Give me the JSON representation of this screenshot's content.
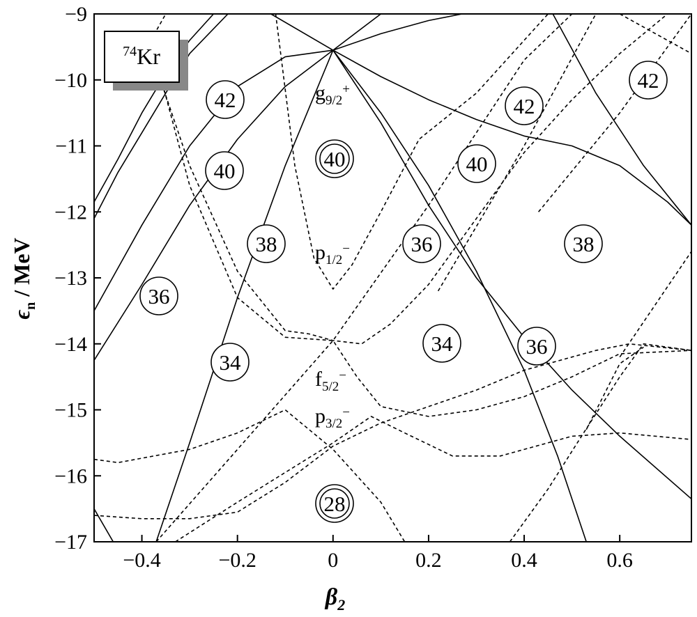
{
  "chart_data": {
    "type": "line",
    "x_label": {
      "symbol": "β",
      "subscript": "2"
    },
    "y_label": {
      "symbol": "ϵ",
      "subscript": "n",
      "unit": " / MeV"
    },
    "xlim": [
      -0.5,
      0.75
    ],
    "ylim": [
      -17,
      -9
    ],
    "xticks": [
      {
        "value": -0.4,
        "label": "−0.4"
      },
      {
        "value": -0.2,
        "label": "−0.2"
      },
      0,
      0.2,
      0.4,
      0.6
    ],
    "yticks": [
      {
        "value": -17,
        "label": "−17"
      },
      {
        "value": -16,
        "label": "−16"
      },
      {
        "value": -15,
        "label": "−15"
      },
      {
        "value": -14,
        "label": "−14"
      },
      {
        "value": -13,
        "label": "−13"
      },
      {
        "value": -12,
        "label": "−12"
      },
      {
        "value": -11,
        "label": "−11"
      },
      {
        "value": -10,
        "label": "−10"
      },
      {
        "value": -9,
        "label": "−9"
      }
    ],
    "color": "#000000",
    "inset": {
      "mass": "74",
      "element": "Kr"
    },
    "orbital_labels": [
      {
        "letter": "g",
        "sub": "9/2",
        "sup": "+"
      },
      {
        "letter": "p",
        "sub": "1/2",
        "sup": "−"
      },
      {
        "letter": "f",
        "sub": "5/2",
        "sup": "−"
      },
      {
        "letter": "p",
        "sub": "3/2",
        "sup": "−"
      }
    ],
    "magic_numbers": [
      {
        "label": "42",
        "double": false
      },
      {
        "label": "40",
        "double": false
      },
      {
        "label": "38",
        "double": false
      },
      {
        "label": "36",
        "double": false
      },
      {
        "label": "34",
        "double": false
      },
      {
        "label": "40",
        "double": true
      },
      {
        "label": "36",
        "double": false
      },
      {
        "label": "34",
        "double": false
      },
      {
        "label": "40",
        "double": false
      },
      {
        "label": "42",
        "double": false
      },
      {
        "label": "36",
        "double": false
      },
      {
        "label": "38",
        "double": false
      },
      {
        "label": "42",
        "double": false
      },
      {
        "label": "28",
        "double": true
      }
    ],
    "series": [
      {
        "style": "solid",
        "x": [
          -0.5,
          -0.4,
          -0.3,
          -0.2,
          -0.1,
          0
        ],
        "values": [
          -13.5,
          -12.2,
          -11.0,
          -10.1,
          -9.65,
          -9.55
        ]
      },
      {
        "style": "solid",
        "x": [
          -0.5,
          -0.4,
          -0.3,
          -0.2,
          -0.1,
          0
        ],
        "values": [
          -14.25,
          -13.1,
          -11.9,
          -10.9,
          -10.1,
          -9.55
        ]
      },
      {
        "style": "solid",
        "x": [
          -0.5,
          -0.45,
          -0.4,
          -0.35,
          -0.3,
          -0.25
        ],
        "values": [
          -11.85,
          -11.2,
          -10.5,
          -9.9,
          -9.4,
          -9.0
        ]
      },
      {
        "style": "solid",
        "x": [
          -0.5,
          -0.45,
          -0.4,
          -0.35,
          -0.3,
          -0.22
        ],
        "values": [
          -12.1,
          -11.4,
          -10.8,
          -10.2,
          -9.6,
          -9.0
        ]
      },
      {
        "style": "solid",
        "x": [
          -0.37,
          -0.3,
          -0.2,
          -0.1,
          0
        ],
        "values": [
          -17,
          -15.5,
          -13.3,
          -11.3,
          -9.55
        ]
      },
      {
        "style": "solid",
        "x": [
          -0.5,
          -0.46
        ],
        "values": [
          -16.5,
          -17
        ]
      },
      {
        "style": "solid",
        "x": [
          -0.13,
          0,
          0.1
        ],
        "values": [
          -9.0,
          -9.55,
          -9.0
        ]
      },
      {
        "style": "solid",
        "x": [
          0,
          0.1,
          0.2,
          0.3,
          0.4,
          0.47,
          0.53
        ],
        "values": [
          -9.55,
          -10.5,
          -11.6,
          -12.9,
          -14.4,
          -15.7,
          -17
        ]
      },
      {
        "style": "solid",
        "x": [
          0,
          0.1,
          0.2,
          0.3,
          0.4,
          0.5,
          0.6,
          0.75
        ],
        "values": [
          -9.55,
          -10.65,
          -11.9,
          -13.0,
          -13.9,
          -14.7,
          -15.4,
          -16.35
        ]
      },
      {
        "style": "solid",
        "x": [
          0,
          0.1,
          0.2,
          0.3,
          0.4,
          0.5,
          0.6,
          0.7,
          0.75
        ],
        "values": [
          -9.55,
          -9.95,
          -10.3,
          -10.6,
          -10.85,
          -11.0,
          -11.3,
          -11.85,
          -12.2
        ]
      },
      {
        "style": "solid",
        "x": [
          0,
          0.1,
          0.2,
          0.27
        ],
        "values": [
          -9.55,
          -9.3,
          -9.1,
          -9.0
        ]
      },
      {
        "style": "solid",
        "x": [
          0.46,
          0.55,
          0.65,
          0.75
        ],
        "values": [
          -9.0,
          -10.2,
          -11.3,
          -12.2
        ]
      },
      {
        "style": "dashed",
        "x": [
          -0.12,
          -0.08,
          -0.04,
          0,
          0.04,
          0.1,
          0.18,
          0.3,
          0.45
        ],
        "values": [
          -9.0,
          -11.3,
          -12.7,
          -13.17,
          -12.8,
          -12.0,
          -10.9,
          -10.2,
          -9.0
        ]
      },
      {
        "style": "dashed",
        "x": [
          -0.38,
          -0.3,
          -0.2,
          -0.1,
          -0.05,
          0,
          0.06,
          0.12,
          0.2,
          0.3,
          0.4,
          0.5,
          0.6,
          0.7
        ],
        "values": [
          -9.6,
          -11.3,
          -12.9,
          -13.8,
          -13.85,
          -13.95,
          -14.0,
          -13.7,
          -13.1,
          -12.1,
          -11.1,
          -10.3,
          -9.6,
          -9.0
        ]
      },
      {
        "style": "dashed",
        "x": [
          -0.37,
          -0.3,
          -0.2,
          -0.1,
          0,
          0.05,
          0.1,
          0.2,
          0.3,
          0.4,
          0.5,
          0.6,
          0.75
        ],
        "values": [
          -9.7,
          -11.6,
          -13.3,
          -13.9,
          -13.95,
          -14.5,
          -14.95,
          -15.1,
          -15.0,
          -14.8,
          -14.5,
          -14.15,
          -14.1
        ]
      },
      {
        "style": "dashed",
        "x": [
          -0.37,
          -0.2,
          0,
          0.2,
          0.4,
          0.5
        ],
        "values": [
          -17,
          -15.6,
          -13.95,
          -11.9,
          -9.7,
          -9.0
        ]
      },
      {
        "style": "dashed",
        "x": [
          -0.5,
          -0.45,
          -0.3,
          -0.2,
          -0.1,
          0,
          0.1,
          0.15
        ],
        "values": [
          -15.75,
          -15.8,
          -15.6,
          -15.35,
          -15.0,
          -15.6,
          -16.4,
          -17
        ]
      },
      {
        "style": "dashed",
        "x": [
          -0.33,
          -0.2,
          -0.1,
          0,
          0.08,
          0.15,
          0.25,
          0.35,
          0.5,
          0.6,
          0.75
        ],
        "values": [
          -17,
          -16.4,
          -15.95,
          -15.5,
          -15.1,
          -15.35,
          -15.7,
          -15.7,
          -15.4,
          -15.35,
          -15.45
        ]
      },
      {
        "style": "dashed",
        "x": [
          -0.5,
          -0.4,
          -0.3,
          -0.2,
          -0.1,
          0,
          0.1,
          0.2,
          0.3,
          0.4,
          0.5,
          0.55,
          0.62,
          0.75
        ],
        "values": [
          -16.6,
          -16.65,
          -16.65,
          -16.55,
          -16.1,
          -15.55,
          -15.2,
          -14.95,
          -14.7,
          -14.4,
          -14.2,
          -14.1,
          -14.0,
          -14.1
        ]
      },
      {
        "style": "dashed",
        "x": [
          0.37,
          0.45,
          0.52,
          0.6,
          0.65,
          0.75
        ],
        "values": [
          -17,
          -16.2,
          -15.4,
          -14.5,
          -14.0,
          -14.1
        ]
      },
      {
        "style": "dashed",
        "x": [
          0.53,
          0.6,
          0.65
        ],
        "values": [
          -15.3,
          -14.3,
          -14.05
        ]
      },
      {
        "style": "dashed",
        "x": [
          0.22,
          0.4,
          0.55
        ],
        "values": [
          -13.2,
          -11.0,
          -9.0
        ]
      },
      {
        "style": "dashed",
        "x": [
          0.43,
          0.6,
          0.75
        ],
        "values": [
          -12.0,
          -10.5,
          -9.0
        ]
      },
      {
        "style": "dashed",
        "x": [
          0.6,
          0.75
        ],
        "values": [
          -9.0,
          -9.6
        ]
      },
      {
        "style": "dashed",
        "x": [
          0.6,
          0.75
        ],
        "values": [
          -14.2,
          -12.6
        ]
      },
      {
        "style": "dashed",
        "x": [
          -0.42,
          -0.35
        ],
        "values": [
          -9.9,
          -9.0
        ]
      }
    ]
  }
}
